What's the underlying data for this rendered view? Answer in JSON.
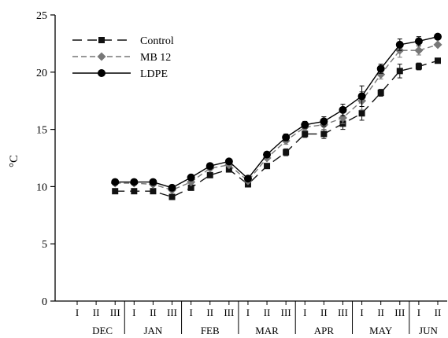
{
  "chart_data": {
    "type": "line",
    "title": "",
    "xlabel": "",
    "ylabel": "°C",
    "ylim": [
      0,
      25
    ],
    "yticks": [
      0,
      5,
      10,
      15,
      20,
      25
    ],
    "grid": false,
    "legend_position": "top-left",
    "categories": [
      "DEC I",
      "DEC II",
      "DEC III",
      "JAN I",
      "JAN II",
      "JAN III",
      "FEB I",
      "FEB II",
      "FEB III",
      "MAR I",
      "MAR II",
      "MAR III",
      "APR I",
      "APR II",
      "APR III",
      "MAY I",
      "MAY II",
      "MAY III",
      "JUN I",
      "JUN II"
    ],
    "decade_labels": [
      "I",
      "II",
      "III",
      "I",
      "II",
      "III",
      "I",
      "II",
      "III",
      "I",
      "II",
      "III",
      "I",
      "II",
      "III",
      "I",
      "II",
      "III",
      "I",
      "II"
    ],
    "months": [
      {
        "label": "DEC",
        "span": 3
      },
      {
        "label": "JAN",
        "span": 3
      },
      {
        "label": "FEB",
        "span": 3
      },
      {
        "label": "MAR",
        "span": 3
      },
      {
        "label": "APR",
        "span": 3
      },
      {
        "label": "MAY",
        "span": 3
      },
      {
        "label": "JUN",
        "span": 2
      }
    ],
    "series": [
      {
        "name": "Control",
        "style": "long-dash",
        "marker": "square",
        "color": "#111111",
        "values": [
          null,
          null,
          9.6,
          9.6,
          9.6,
          9.1,
          9.9,
          11.0,
          11.5,
          10.2,
          11.8,
          13.0,
          14.6,
          14.6,
          15.5,
          16.4,
          18.2,
          20.1,
          20.5,
          21.0
        ],
        "errors": [
          0,
          0,
          0.2,
          0.2,
          0.2,
          0.2,
          0.2,
          0.2,
          0.2,
          0.2,
          0.2,
          0.3,
          0.3,
          0.4,
          0.5,
          0.6,
          0.3,
          0.6,
          0.3,
          0.2
        ]
      },
      {
        "name": "MB 12",
        "style": "dash",
        "marker": "diamond",
        "color": "#777777",
        "values": [
          null,
          null,
          10.3,
          10.3,
          10.2,
          9.7,
          10.4,
          11.6,
          11.9,
          10.5,
          12.5,
          14.0,
          15.2,
          15.4,
          16.0,
          17.5,
          19.8,
          21.9,
          21.9,
          22.4
        ],
        "errors": [
          0,
          0,
          0.2,
          0.2,
          0.2,
          0.2,
          0.2,
          0.2,
          0.2,
          0.2,
          0.2,
          0.3,
          0.3,
          0.4,
          0.5,
          0.8,
          0.4,
          0.6,
          0.4,
          0.2
        ]
      },
      {
        "name": "LDPE",
        "style": "solid",
        "marker": "circle",
        "color": "#000000",
        "values": [
          null,
          null,
          10.4,
          10.4,
          10.4,
          9.9,
          10.8,
          11.8,
          12.2,
          10.7,
          12.8,
          14.3,
          15.4,
          15.7,
          16.7,
          17.9,
          20.3,
          22.4,
          22.7,
          23.1
        ],
        "errors": [
          0,
          0,
          0.2,
          0.2,
          0.2,
          0.2,
          0.2,
          0.2,
          0.2,
          0.2,
          0.2,
          0.3,
          0.3,
          0.4,
          0.5,
          0.9,
          0.4,
          0.5,
          0.4,
          0.2
        ]
      }
    ]
  }
}
